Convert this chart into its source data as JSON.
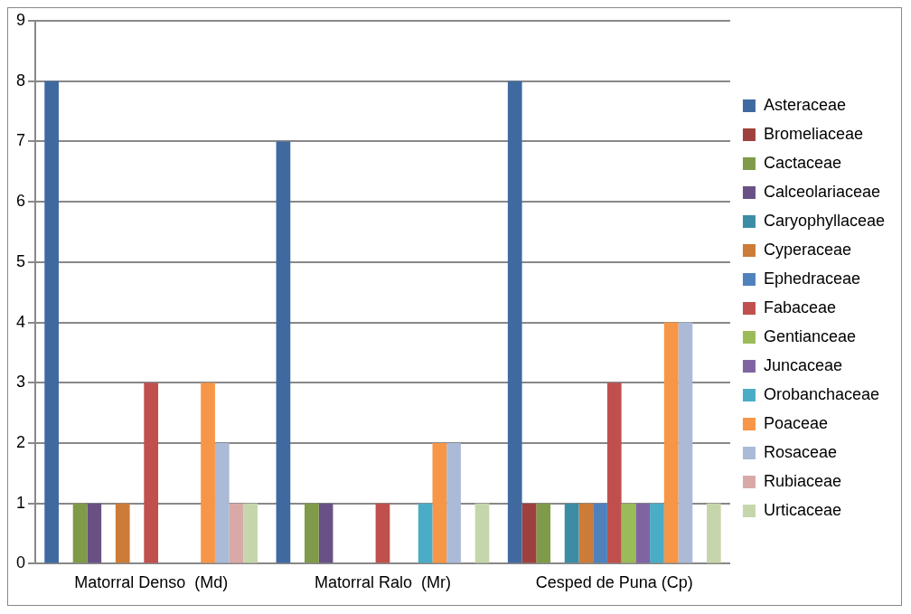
{
  "chart_data": {
    "type": "bar",
    "categories": [
      "Matorral Denso  (Md)",
      "Matorral Ralo  (Mr)",
      "Cesped de Puna (Cp)"
    ],
    "series": [
      {
        "name": "Asteraceae",
        "color": "#4069a0",
        "values": [
          8,
          7,
          8
        ]
      },
      {
        "name": "Bromeliaceae",
        "color": "#9e413e",
        "values": [
          0,
          0,
          1
        ]
      },
      {
        "name": "Cactaceae",
        "color": "#7f9a48",
        "values": [
          1,
          1,
          1
        ]
      },
      {
        "name": "Calceolariaceae",
        "color": "#695185",
        "values": [
          1,
          1,
          0
        ]
      },
      {
        "name": "Caryophyllaceae",
        "color": "#3c8da3",
        "values": [
          0,
          0,
          1
        ]
      },
      {
        "name": "Cyperaceae",
        "color": "#cc7b38",
        "values": [
          1,
          0,
          1
        ]
      },
      {
        "name": "Ephedraceae",
        "color": "#4f81bd",
        "values": [
          0,
          0,
          1
        ]
      },
      {
        "name": "Fabaceae",
        "color": "#c0504d",
        "values": [
          3,
          1,
          3
        ]
      },
      {
        "name": "Gentianceae",
        "color": "#9bbb59",
        "values": [
          0,
          0,
          1
        ]
      },
      {
        "name": "Juncaceae",
        "color": "#8064a2",
        "values": [
          0,
          0,
          1
        ]
      },
      {
        "name": "Orobanchaceae",
        "color": "#4bacc6",
        "values": [
          0,
          1,
          1
        ]
      },
      {
        "name": "Poaceae",
        "color": "#f79646",
        "values": [
          3,
          2,
          4
        ]
      },
      {
        "name": "Rosaceae",
        "color": "#aabad7",
        "values": [
          2,
          2,
          4
        ]
      },
      {
        "name": "Rubiaceae",
        "color": "#d9a9a8",
        "values": [
          1,
          0,
          0
        ]
      },
      {
        "name": "Urticaceae",
        "color": "#c6d6ac",
        "values": [
          1,
          1,
          1
        ]
      }
    ],
    "ylim": [
      0,
      9
    ],
    "yticks": [
      0,
      1,
      2,
      3,
      4,
      5,
      6,
      7,
      8,
      9
    ],
    "grid": "y",
    "legend": "right"
  }
}
